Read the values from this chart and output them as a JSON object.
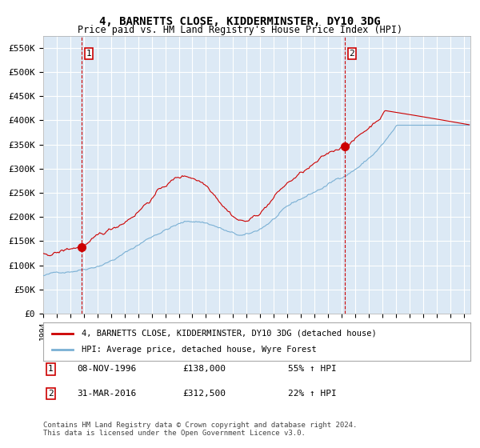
{
  "title_line1": "4, BARNETTS CLOSE, KIDDERMINSTER, DY10 3DG",
  "title_line2": "Price paid vs. HM Land Registry's House Price Index (HPI)",
  "ylabel": "",
  "ylim": [
    0,
    575000
  ],
  "yticks": [
    0,
    50000,
    100000,
    150000,
    200000,
    250000,
    300000,
    350000,
    400000,
    450000,
    500000,
    550000
  ],
  "ytick_labels": [
    "£0",
    "£50K",
    "£100K",
    "£150K",
    "£200K",
    "£250K",
    "£300K",
    "£350K",
    "£400K",
    "£450K",
    "£500K",
    "£550K"
  ],
  "xlim_start": 1994.0,
  "xlim_end": 2025.5,
  "bg_color": "#dce9f5",
  "plot_bg_color": "#dce9f5",
  "red_line_color": "#cc0000",
  "blue_line_color": "#7ab0d4",
  "grid_color": "#ffffff",
  "vline_color": "#cc0000",
  "marker_color": "#cc0000",
  "purchase1_year": 1996.86,
  "purchase1_price": 138000,
  "purchase1_label": "08-NOV-1996",
  "purchase1_pct": "55% ↑ HPI",
  "purchase2_year": 2016.25,
  "purchase2_price": 312500,
  "purchase2_label": "31-MAR-2016",
  "purchase2_pct": "22% ↑ HPI",
  "legend_line1": "4, BARNETTS CLOSE, KIDDERMINSTER, DY10 3DG (detached house)",
  "legend_line2": "HPI: Average price, detached house, Wyre Forest",
  "footnote": "Contains HM Land Registry data © Crown copyright and database right 2024.\nThis data is licensed under the Open Government Licence v3.0.",
  "number_box1_label": "1",
  "number_box2_label": "2",
  "table_row1": [
    "1",
    "08-NOV-1996",
    "£138,000",
    "55% ↑ HPI"
  ],
  "table_row2": [
    "2",
    "31-MAR-2016",
    "£312,500",
    "22% ↑ HPI"
  ]
}
